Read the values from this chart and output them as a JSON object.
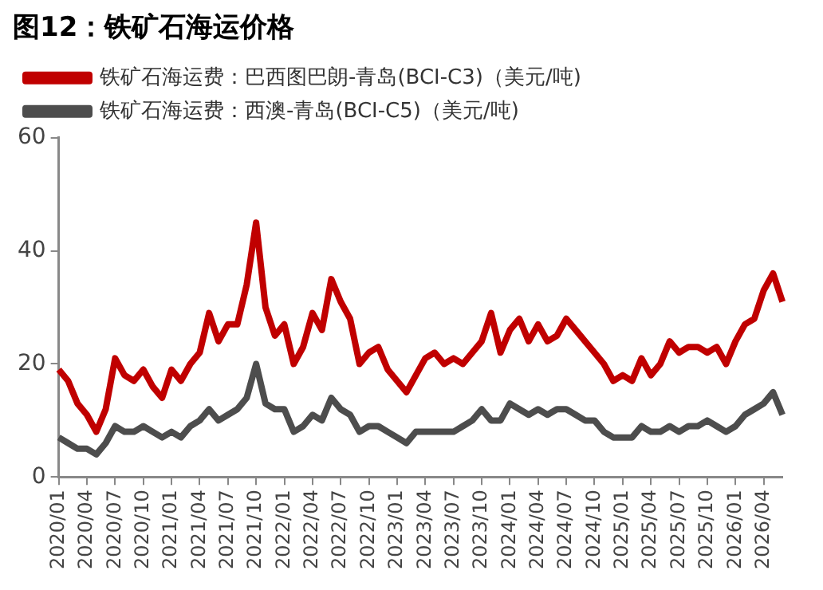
{
  "chart_data": {
    "type": "line",
    "title": "图12：铁矿石海运价格",
    "categories": [
      "2020/01",
      null,
      null,
      "2020/04",
      null,
      null,
      "2020/07",
      null,
      null,
      "2020/10",
      null,
      null,
      "2021/01",
      null,
      null,
      "2021/04",
      null,
      null,
      "2021/07",
      null,
      null,
      "2021/10",
      null,
      null,
      "2022/01",
      null,
      null,
      "2022/04",
      null,
      null,
      "2022/07",
      null,
      null,
      "2022/10",
      null,
      null,
      "2023/01",
      null,
      null,
      "2023/04",
      null,
      null,
      "2023/07",
      null,
      null,
      "2023/10",
      null,
      null,
      "2024/01",
      null,
      null,
      "2024/04",
      null,
      null,
      "2024/07",
      null,
      null,
      "2024/10",
      null,
      null,
      "2025/01",
      null,
      null,
      "2025/04",
      null,
      null,
      "2025/07",
      null,
      null,
      "2025/10",
      null,
      null,
      "2026/01",
      null,
      null,
      "2026/04",
      null,
      null
    ],
    "series": [
      {
        "name": "铁矿石海运费：巴西图巴朗-青岛(BCI-C3)（美元/吨)",
        "color": "#c00000",
        "values": [
          19,
          17,
          13,
          11,
          8,
          12,
          21,
          18,
          17,
          19,
          16,
          14,
          19,
          17,
          20,
          22,
          29,
          24,
          27,
          27,
          34,
          45,
          30,
          25,
          27,
          20,
          23,
          29,
          26,
          35,
          31,
          28,
          20,
          22,
          23,
          19,
          17,
          15,
          18,
          21,
          22,
          20,
          21,
          20,
          22,
          24,
          29,
          22,
          26,
          28,
          24,
          27,
          24,
          25,
          28,
          26,
          24,
          22,
          20,
          17,
          18,
          17,
          21,
          18,
          20,
          24,
          22,
          23,
          23,
          22,
          23,
          20,
          24,
          27,
          28,
          33,
          36,
          31
        ]
      },
      {
        "name": "铁矿石海运费：西澳-青岛(BCI-C5)（美元/吨)",
        "color": "#4d4d4d",
        "values": [
          7,
          6,
          5,
          5,
          4,
          6,
          9,
          8,
          8,
          9,
          8,
          7,
          8,
          7,
          9,
          10,
          12,
          10,
          11,
          12,
          14,
          20,
          13,
          12,
          12,
          8,
          9,
          11,
          10,
          14,
          12,
          11,
          8,
          9,
          9,
          8,
          7,
          6,
          8,
          8,
          8,
          8,
          8,
          9,
          10,
          12,
          10,
          10,
          13,
          12,
          11,
          12,
          11,
          12,
          12,
          11,
          10,
          10,
          8,
          7,
          7,
          7,
          9,
          8,
          8,
          9,
          8,
          9,
          9,
          10,
          9,
          8,
          9,
          11,
          12,
          13,
          15,
          11
        ]
      }
    ],
    "ylim": [
      0,
      60
    ],
    "yticks": [
      0,
      20,
      40,
      60
    ],
    "grid": false,
    "legend": "top left",
    "marker": "none",
    "line_style": "solid"
  }
}
